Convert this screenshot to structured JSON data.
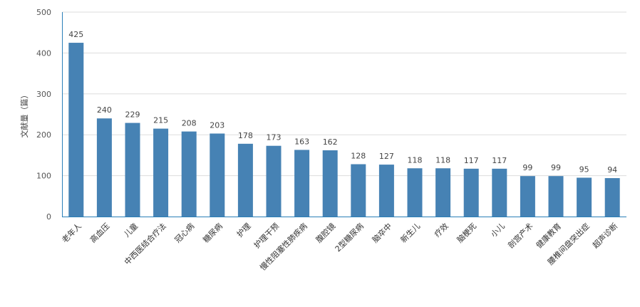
{
  "chart_data": {
    "type": "bar",
    "title": "",
    "xlabel": "",
    "ylabel": "文献量（篇）",
    "ylim": [
      0,
      500
    ],
    "yticks": [
      0,
      100,
      200,
      300,
      400,
      500
    ],
    "grid": true,
    "legend": "none",
    "bar_color": "#4682b4",
    "axis_color": "#2a7fb8",
    "categories": [
      "老年人",
      "高血压",
      "儿童",
      "中西医结合疗法",
      "冠心病",
      "糖尿病",
      "护理",
      "护理干预",
      "慢性阻塞性肺疾病",
      "腹腔镜",
      "2型糖尿病",
      "脑卒中",
      "新生儿",
      "疗效",
      "脑梗死",
      "小儿",
      "剖宫产术",
      "健康教育",
      "腰椎间盘突出症",
      "超声诊断"
    ],
    "values": [
      425,
      240,
      229,
      215,
      208,
      203,
      178,
      173,
      163,
      162,
      128,
      127,
      118,
      118,
      117,
      117,
      99,
      99,
      95,
      94
    ]
  }
}
